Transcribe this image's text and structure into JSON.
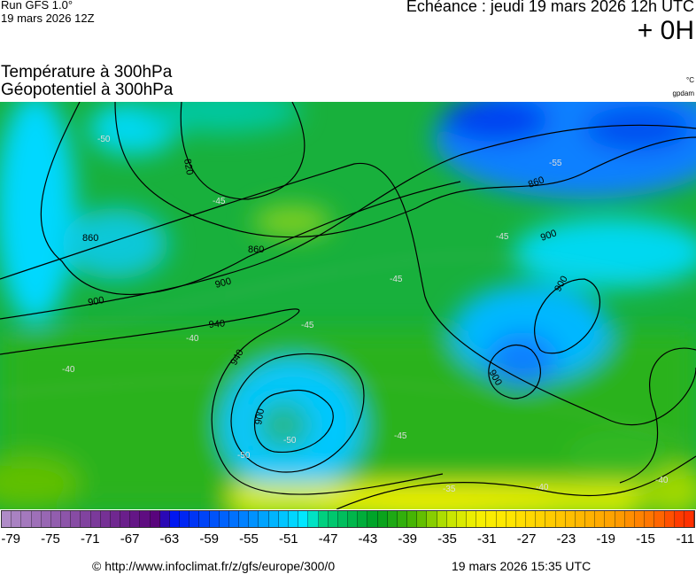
{
  "header": {
    "run": "Run GFS 1.0°",
    "run_date": "19 mars 2026 12Z",
    "echeance": "Echéance : jeudi 19 mars 2026 12h UTC",
    "lead_time": "+ 0H",
    "title_line1": "Température à 300hPa",
    "title_line2": "Géopotentiel à 300hPa",
    "unit_temperature": "°C",
    "unit_geopotential": "gpdam"
  },
  "map": {
    "geopotential_labels": [
      "820",
      "860",
      "860",
      "860",
      "900",
      "900",
      "940",
      "940",
      "900",
      "900",
      "900",
      "900"
    ],
    "temperature_labels": [
      "-45",
      "-45",
      "-45",
      "-50",
      "-55",
      "-40",
      "-40",
      "-45",
      "-50",
      "-45",
      "-35",
      "-40",
      "-40",
      "-50"
    ]
  },
  "colorbar": {
    "min": -80,
    "max": -10,
    "step": 1,
    "color_stops": [
      {
        "t": -80,
        "c": "#b28fc9"
      },
      {
        "t": -64,
        "c": "#56007a"
      },
      {
        "t": -63,
        "c": "#0010f0"
      },
      {
        "t": -56,
        "c": "#0078ff"
      },
      {
        "t": -49,
        "c": "#00f0ff"
      },
      {
        "t": -48,
        "c": "#00d488"
      },
      {
        "t": -42,
        "c": "#00a020"
      },
      {
        "t": -38,
        "c": "#50b800"
      },
      {
        "t": -35,
        "c": "#c0e400"
      },
      {
        "t": -32,
        "c": "#f4f000"
      },
      {
        "t": -29,
        "c": "#ffe800"
      },
      {
        "t": -24,
        "c": "#ffc800"
      },
      {
        "t": -18,
        "c": "#ffa000"
      },
      {
        "t": -14,
        "c": "#ff7000"
      },
      {
        "t": -11,
        "c": "#ff3000"
      }
    ],
    "tick_labels": [
      "-79",
      "-75",
      "-71",
      "-67",
      "-63",
      "-59",
      "-55",
      "-51",
      "-47",
      "-43",
      "-39",
      "-35",
      "-31",
      "-27",
      "-23",
      "-19",
      "-15",
      "-11"
    ]
  },
  "footer": {
    "copyright": "© http://www.infoclimat.fr/z/gfs/europe/300/0",
    "generated": "19 mars 2026 15:35 UTC"
  }
}
